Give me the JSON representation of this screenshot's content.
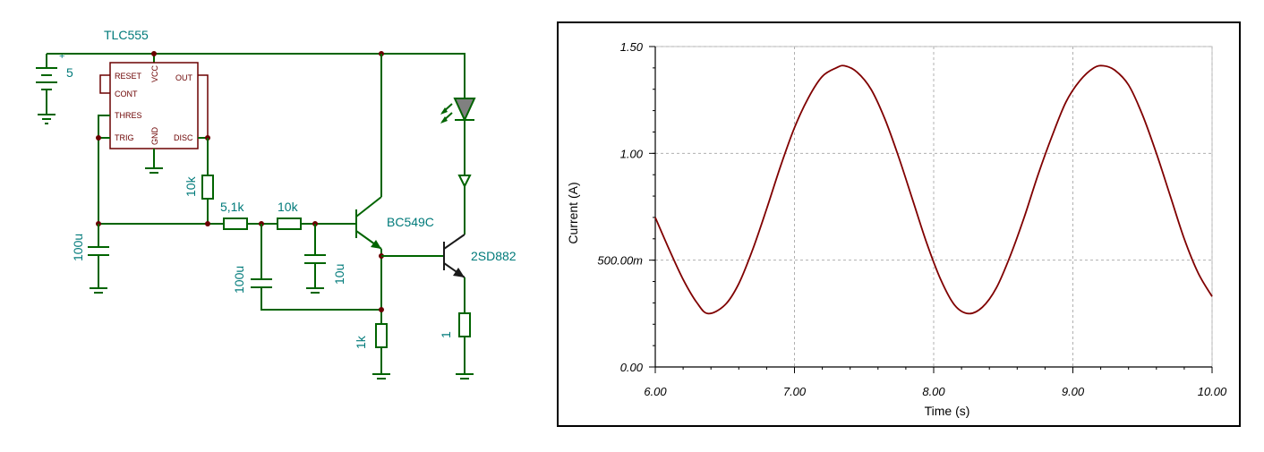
{
  "schematic": {
    "labels": {
      "chip": "TLC555",
      "battery": "5",
      "r_disc": "10k",
      "r1": "5,1k",
      "r2": "10k",
      "c_trig": "100u",
      "c1": "100u",
      "c2": "10u",
      "q1": "BC549C",
      "q2": "2SD882",
      "r_emitter": "1k",
      "r_load": "1",
      "battery_plus": "+"
    },
    "pins": {
      "reset": "RESET",
      "cont": "CONT",
      "thres": "THRES",
      "trig": "TRIG",
      "vcc": "VCC",
      "gnd": "GND",
      "out": "OUT",
      "disc": "DISC"
    },
    "colors": {
      "wire": "#006400",
      "label": "#007a7a",
      "chip_border": "#6b0000",
      "transistor_power": "#1a1a1a"
    }
  },
  "chart_data": {
    "type": "line",
    "xlabel": "Time (s)",
    "ylabel": "Current (A)",
    "xlim": [
      6,
      10
    ],
    "ylim": [
      0,
      1.5
    ],
    "x_ticks": [
      "6.00",
      "7.00",
      "8.00",
      "9.00",
      "10.00"
    ],
    "y_ticks": [
      "0.00",
      "500.00m",
      "1.00",
      "1.50"
    ],
    "grid": true,
    "line_color": "#800000",
    "series": [
      {
        "x": [
          6.0,
          6.1,
          6.2,
          6.3,
          6.38,
          6.5,
          6.6,
          6.7,
          6.8,
          6.9,
          7.0,
          7.1,
          7.2,
          7.3,
          7.36,
          7.45,
          7.55,
          7.65,
          7.75,
          7.85,
          7.95,
          8.05,
          8.15,
          8.25,
          8.35,
          8.45,
          8.55,
          8.65,
          8.75,
          8.85,
          8.95,
          9.05,
          9.15,
          9.22,
          9.3,
          9.4,
          9.5,
          9.6,
          9.7,
          9.8,
          9.9,
          10.0
        ],
        "y": [
          0.7,
          0.55,
          0.41,
          0.3,
          0.25,
          0.29,
          0.39,
          0.55,
          0.74,
          0.94,
          1.12,
          1.26,
          1.36,
          1.4,
          1.41,
          1.38,
          1.3,
          1.16,
          0.98,
          0.78,
          0.58,
          0.41,
          0.29,
          0.25,
          0.28,
          0.37,
          0.52,
          0.7,
          0.9,
          1.08,
          1.24,
          1.34,
          1.4,
          1.41,
          1.39,
          1.32,
          1.18,
          1.0,
          0.8,
          0.6,
          0.44,
          0.33
        ]
      }
    ]
  }
}
